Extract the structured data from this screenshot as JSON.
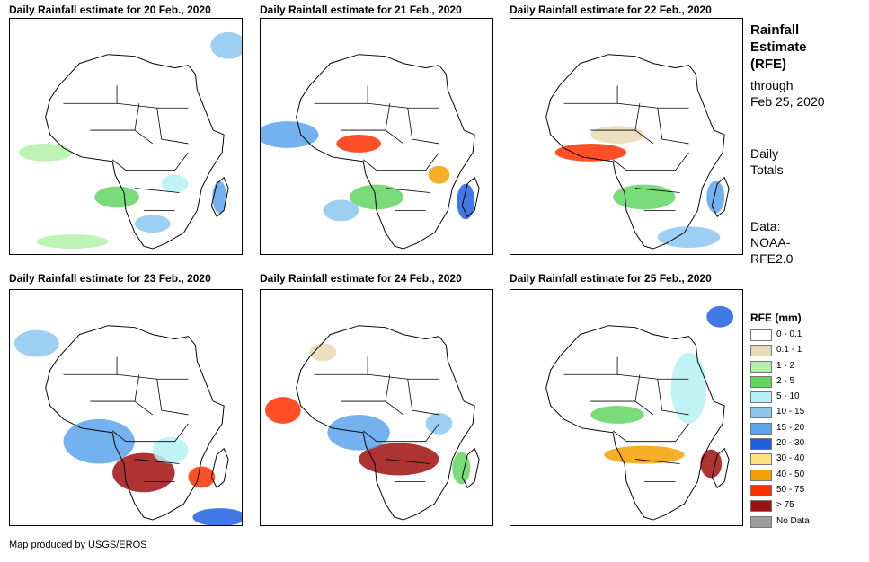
{
  "panels": [
    {
      "title": "Daily Rainfall estimate for 20 Feb., 2020"
    },
    {
      "title": "Daily Rainfall estimate for 21 Feb., 2020"
    },
    {
      "title": "Daily Rainfall estimate for 22 Feb., 2020"
    },
    {
      "title": "Daily Rainfall estimate for 23 Feb., 2020"
    },
    {
      "title": "Daily Rainfall estimate for 24 Feb., 2020"
    },
    {
      "title": "Daily Rainfall estimate for 25 Feb., 2020"
    }
  ],
  "side": {
    "heading1": "Rainfall",
    "heading2": "Estimate",
    "heading3": "(RFE)",
    "through1": "through",
    "through2": "Feb 25, 2020",
    "daily1": "Daily",
    "daily2": "Totals",
    "data1": "Data:",
    "data2": "NOAA-",
    "data3": "RFE2.0"
  },
  "legend": {
    "title": "RFE (mm)",
    "items": [
      {
        "label": "0 - 0.1",
        "color": "#ffffff"
      },
      {
        "label": "0.1 - 1",
        "color": "#e8d9b5"
      },
      {
        "label": "1 - 2",
        "color": "#b4f0a8"
      },
      {
        "label": "2 - 5",
        "color": "#63d563"
      },
      {
        "label": "5 - 10",
        "color": "#b5f0f5"
      },
      {
        "label": "10 - 15",
        "color": "#8cc7f0"
      },
      {
        "label": "15 - 20",
        "color": "#5aa5ec"
      },
      {
        "label": "20 - 30",
        "color": "#2060e0"
      },
      {
        "label": "30 - 40",
        "color": "#ffe080"
      },
      {
        "label": "40 - 50",
        "color": "#f5a000"
      },
      {
        "label": "50 - 75",
        "color": "#ff3000"
      },
      {
        "label": "> 75",
        "color": "#a01010"
      },
      {
        "label": "No Data",
        "color": "#9c9c9c"
      }
    ]
  },
  "credit": "Map produced by USGS/EROS"
}
